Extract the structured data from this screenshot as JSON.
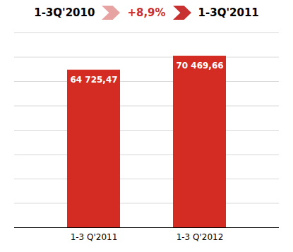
{
  "chart_data": {
    "type": "bar",
    "categories": [
      "1-3 Q'2011",
      "1-3 Q'2012"
    ],
    "values": [
      64725.47,
      70469.66
    ],
    "value_labels": [
      "64 725,47",
      "70 469,66"
    ],
    "data_labels": true,
    "color": "#D42B22",
    "ylim": [
      0,
      80000
    ],
    "yticks": [
      0,
      10000,
      20000,
      30000,
      40000,
      50000,
      60000,
      70000,
      80000
    ],
    "grid": true,
    "tick_labels": "x",
    "annotations": [
      {
        "text": "1-3Q'2010"
      },
      {
        "text": "+8,9%",
        "color": "#C93030"
      },
      {
        "text": "1-3Q'2011"
      }
    ]
  }
}
